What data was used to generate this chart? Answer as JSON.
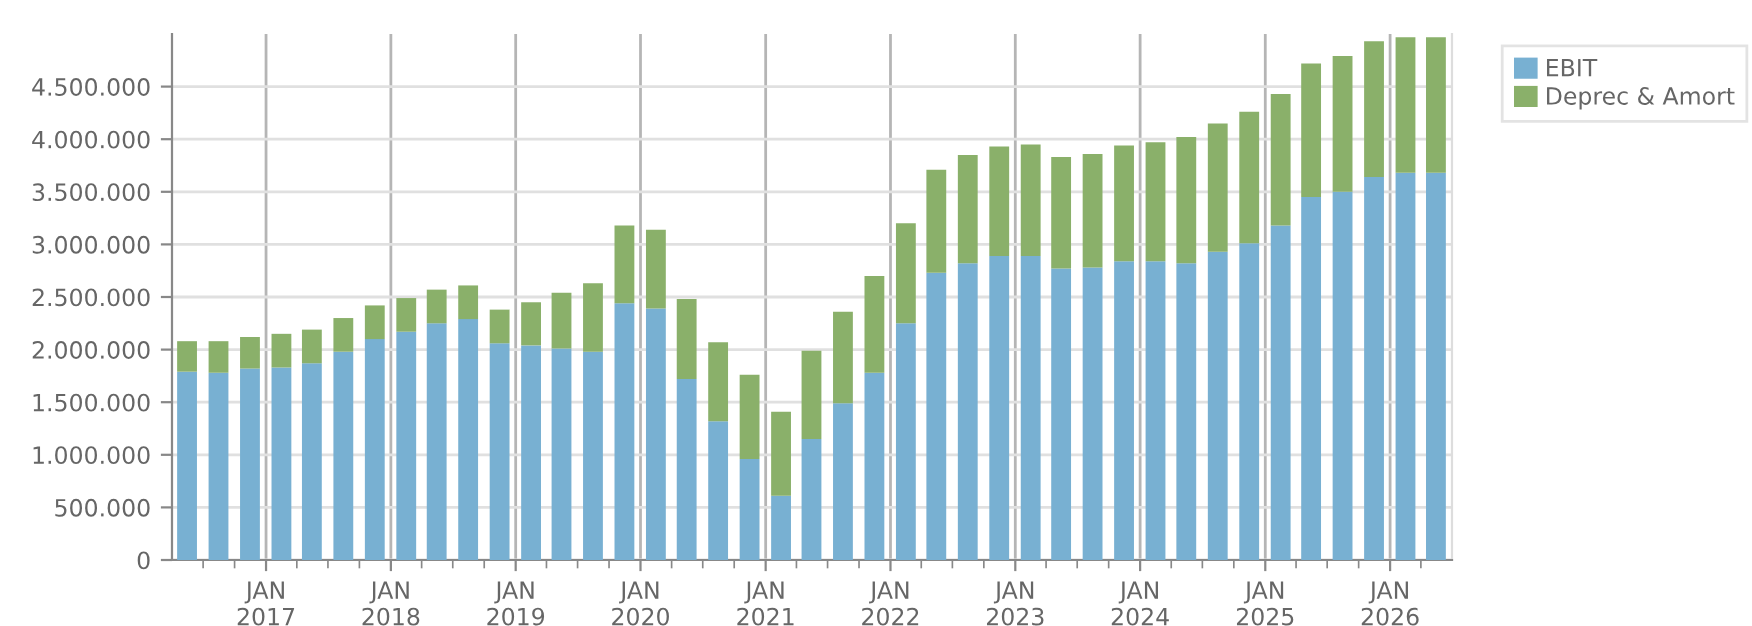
{
  "chart_data": {
    "type": "bar",
    "stacked": true,
    "x": [
      "2016-05-15",
      "2016-08-15",
      "2016-11-15",
      "2017-02-15",
      "2017-05-15",
      "2017-08-15",
      "2017-11-15",
      "2018-02-15",
      "2018-05-15",
      "2018-08-15",
      "2018-11-15",
      "2019-02-15",
      "2019-05-15",
      "2019-08-15",
      "2019-11-15",
      "2020-02-15",
      "2020-05-15",
      "2020-08-15",
      "2020-11-15",
      "2021-02-15",
      "2021-05-15",
      "2021-08-15",
      "2021-11-15",
      "2022-02-15",
      "2022-05-15",
      "2022-08-15",
      "2022-11-15",
      "2023-02-15",
      "2023-05-15",
      "2023-08-15",
      "2023-11-15",
      "2024-02-15",
      "2024-05-15",
      "2024-08-15",
      "2024-11-15",
      "2025-02-15",
      "2025-05-15",
      "2025-08-15",
      "2025-11-15",
      "2026-02-15",
      "2026-05-15"
    ],
    "series": [
      {
        "name": "EBIT",
        "color": "#78b0d2",
        "values": [
          1790000,
          1780000,
          1820000,
          1830000,
          1870000,
          1980000,
          2100000,
          2170000,
          2250000,
          2290000,
          2060000,
          2040000,
          2010000,
          1980000,
          2440000,
          2390000,
          1720000,
          1320000,
          960000,
          610000,
          1150000,
          1490000,
          1780000,
          2250000,
          2730000,
          2820000,
          2890000,
          2890000,
          2770000,
          2780000,
          2840000,
          2840000,
          2820000,
          2930000,
          3010000,
          3180000,
          3450000,
          3500000,
          3640000,
          3680000,
          3680000
        ]
      },
      {
        "name": "Deprec & Amort",
        "color": "#8ab06a",
        "values": [
          290000,
          300000,
          300000,
          320000,
          320000,
          320000,
          320000,
          320000,
          320000,
          320000,
          320000,
          410000,
          530000,
          650000,
          740000,
          750000,
          760000,
          750000,
          800000,
          800000,
          840000,
          870000,
          920000,
          950000,
          980000,
          1030000,
          1040000,
          1060000,
          1060000,
          1080000,
          1100000,
          1130000,
          1200000,
          1220000,
          1250000,
          1250000,
          1270000,
          1290000,
          1290000,
          1290000,
          1290000
        ]
      }
    ],
    "xlim": [
      "2016-04-01",
      "2026-07-01"
    ],
    "xticks": [
      {
        "value": "2016-07-01",
        "label": null
      },
      {
        "value": "2016-10-01",
        "label": null
      },
      {
        "value": "2017-01-01",
        "label": "JAN\n2017"
      },
      {
        "value": "2017-04-01",
        "label": null
      },
      {
        "value": "2017-07-01",
        "label": null
      },
      {
        "value": "2017-10-01",
        "label": null
      },
      {
        "value": "2018-01-01",
        "label": "JAN\n2018"
      },
      {
        "value": "2018-04-01",
        "label": null
      },
      {
        "value": "2018-07-01",
        "label": null
      },
      {
        "value": "2018-10-01",
        "label": null
      },
      {
        "value": "2019-01-01",
        "label": "JAN\n2019"
      },
      {
        "value": "2019-04-01",
        "label": null
      },
      {
        "value": "2019-07-01",
        "label": null
      },
      {
        "value": "2019-10-01",
        "label": null
      },
      {
        "value": "2020-01-01",
        "label": "JAN\n2020"
      },
      {
        "value": "2020-04-01",
        "label": null
      },
      {
        "value": "2020-07-01",
        "label": null
      },
      {
        "value": "2020-10-01",
        "label": null
      },
      {
        "value": "2021-01-01",
        "label": "JAN\n2021"
      },
      {
        "value": "2021-04-01",
        "label": null
      },
      {
        "value": "2021-07-01",
        "label": null
      },
      {
        "value": "2021-10-01",
        "label": null
      },
      {
        "value": "2022-01-01",
        "label": "JAN\n2022"
      },
      {
        "value": "2022-04-01",
        "label": null
      },
      {
        "value": "2022-07-01",
        "label": null
      },
      {
        "value": "2022-10-01",
        "label": null
      },
      {
        "value": "2023-01-01",
        "label": "JAN\n2023"
      },
      {
        "value": "2023-04-01",
        "label": null
      },
      {
        "value": "2023-07-01",
        "label": null
      },
      {
        "value": "2023-10-01",
        "label": null
      },
      {
        "value": "2024-01-01",
        "label": "JAN\n2024"
      },
      {
        "value": "2024-04-01",
        "label": null
      },
      {
        "value": "2024-07-01",
        "label": null
      },
      {
        "value": "2024-10-01",
        "label": null
      },
      {
        "value": "2025-01-01",
        "label": "JAN\n2025"
      },
      {
        "value": "2025-04-01",
        "label": null
      },
      {
        "value": "2025-07-01",
        "label": null
      },
      {
        "value": "2025-10-01",
        "label": null
      },
      {
        "value": "2026-01-01",
        "label": "JAN\n2026"
      },
      {
        "value": "2026-04-01",
        "label": null
      }
    ],
    "ylim": [
      0,
      5000000
    ],
    "yticks": [
      0,
      {
        "value": 500000,
        "label": "500.000"
      },
      {
        "value": 1000000,
        "label": "1.000.000"
      },
      {
        "value": 1500000,
        "label": "1.500.000"
      },
      {
        "value": 2000000,
        "label": "2.000.000"
      },
      {
        "value": 2500000,
        "label": "2.500.000"
      },
      {
        "value": 3000000,
        "label": "3.000.000"
      },
      {
        "value": 3500000,
        "label": "3.500.000"
      },
      {
        "value": 4000000,
        "label": "4.000.000"
      },
      {
        "value": 4500000,
        "label": "4.500.000"
      }
    ],
    "grid": true,
    "legend": "top right"
  }
}
